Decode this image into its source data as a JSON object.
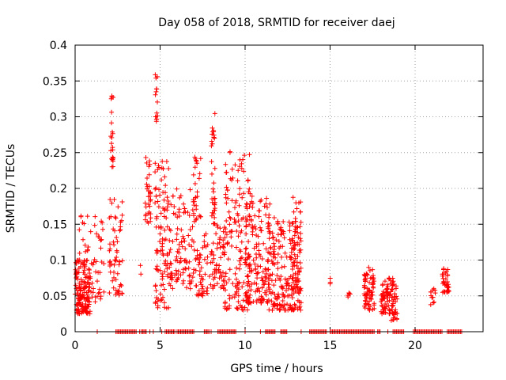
{
  "chart_data": {
    "type": "scatter",
    "title": "Day 058 of 2018, SRMTID for receiver daej",
    "xlabel": "GPS time / hours",
    "ylabel": "SRMTID / TECUs",
    "xlim": [
      0,
      24
    ],
    "ylim": [
      0,
      0.4
    ],
    "x_ticks": [
      0,
      5,
      10,
      15,
      20
    ],
    "x_tick_labels": [
      "0",
      "5",
      "10",
      "15",
      "20"
    ],
    "y_ticks": [
      0,
      0.05,
      0.1,
      0.15,
      0.2,
      0.25,
      0.3,
      0.35,
      0.4
    ],
    "y_tick_labels": [
      "0",
      "0.05",
      "0.1",
      "0.15",
      "0.2",
      "0.25",
      "0.3",
      "0.35",
      "0.4"
    ],
    "grid": true,
    "marker": "+",
    "color": "#ff0000",
    "clusters": [
      {
        "x": [
          0.0,
          0.9
        ],
        "y": [
          0.025,
          0.1
        ],
        "n": 140
      },
      {
        "x": [
          0.2,
          1.7
        ],
        "y": [
          0.04,
          0.17
        ],
        "n": 70
      },
      {
        "x": [
          2.1,
          2.25
        ],
        "y": [
          0.23,
          0.335
        ],
        "n": 22
      },
      {
        "x": [
          2.0,
          2.8
        ],
        "y": [
          0.05,
          0.19
        ],
        "n": 60
      },
      {
        "x": [
          3.8,
          3.9
        ],
        "y": [
          0.08,
          0.11
        ],
        "n": 2
      },
      {
        "x": [
          4.1,
          4.45
        ],
        "y": [
          0.15,
          0.25
        ],
        "n": 35
      },
      {
        "x": [
          4.7,
          4.85
        ],
        "y": [
          0.29,
          0.375
        ],
        "n": 14
      },
      {
        "x": [
          4.7,
          5.5
        ],
        "y": [
          0.03,
          0.24
        ],
        "n": 90
      },
      {
        "x": [
          5.4,
          7.0
        ],
        "y": [
          0.06,
          0.2
        ],
        "n": 110
      },
      {
        "x": [
          6.9,
          7.4
        ],
        "y": [
          0.15,
          0.25
        ],
        "n": 30
      },
      {
        "x": [
          7.0,
          7.8
        ],
        "y": [
          0.05,
          0.14
        ],
        "n": 50
      },
      {
        "x": [
          8.0,
          8.25
        ],
        "y": [
          0.15,
          0.305
        ],
        "n": 35
      },
      {
        "x": [
          7.9,
          8.8
        ],
        "y": [
          0.06,
          0.15
        ],
        "n": 60
      },
      {
        "x": [
          8.8,
          10.3
        ],
        "y": [
          0.03,
          0.26
        ],
        "n": 150
      },
      {
        "x": [
          10.0,
          11.5
        ],
        "y": [
          0.04,
          0.19
        ],
        "n": 170
      },
      {
        "x": [
          11.4,
          13.3
        ],
        "y": [
          0.03,
          0.16
        ],
        "n": 200
      },
      {
        "x": [
          12.8,
          13.3
        ],
        "y": [
          0.07,
          0.19
        ],
        "n": 40
      },
      {
        "x": [
          14.9,
          15.1
        ],
        "y": [
          0.065,
          0.077
        ],
        "n": 3
      },
      {
        "x": [
          16.0,
          16.2
        ],
        "y": [
          0.045,
          0.055
        ],
        "n": 5
      },
      {
        "x": [
          17.0,
          17.6
        ],
        "y": [
          0.03,
          0.09
        ],
        "n": 70
      },
      {
        "x": [
          18.0,
          18.9
        ],
        "y": [
          0.025,
          0.075
        ],
        "n": 90
      },
      {
        "x": [
          18.6,
          19.0
        ],
        "y": [
          0.015,
          0.05
        ],
        "n": 15
      },
      {
        "x": [
          20.9,
          21.2
        ],
        "y": [
          0.035,
          0.06
        ],
        "n": 12
      },
      {
        "x": [
          21.6,
          22.0
        ],
        "y": [
          0.055,
          0.09
        ],
        "n": 35
      }
    ],
    "zero_value_bands": [
      [
        2.4,
        3.6
      ],
      [
        3.9,
        4.2
      ],
      [
        5.3,
        5.9
      ],
      [
        6.0,
        7.0
      ],
      [
        7.6,
        7.9
      ],
      [
        8.4,
        9.5
      ],
      [
        11.2,
        11.8
      ],
      [
        12.1,
        12.5
      ],
      [
        13.8,
        14.8
      ],
      [
        15.0,
        17.6
      ],
      [
        17.8,
        18.0
      ],
      [
        18.7,
        19.4
      ],
      [
        19.9,
        21.6
      ],
      [
        21.9,
        22.8
      ]
    ],
    "zero_value_singles": [
      1.3,
      3.8,
      4.4,
      4.6,
      5.1,
      8.0,
      10.0,
      10.9,
      13.3,
      18.4
    ]
  }
}
